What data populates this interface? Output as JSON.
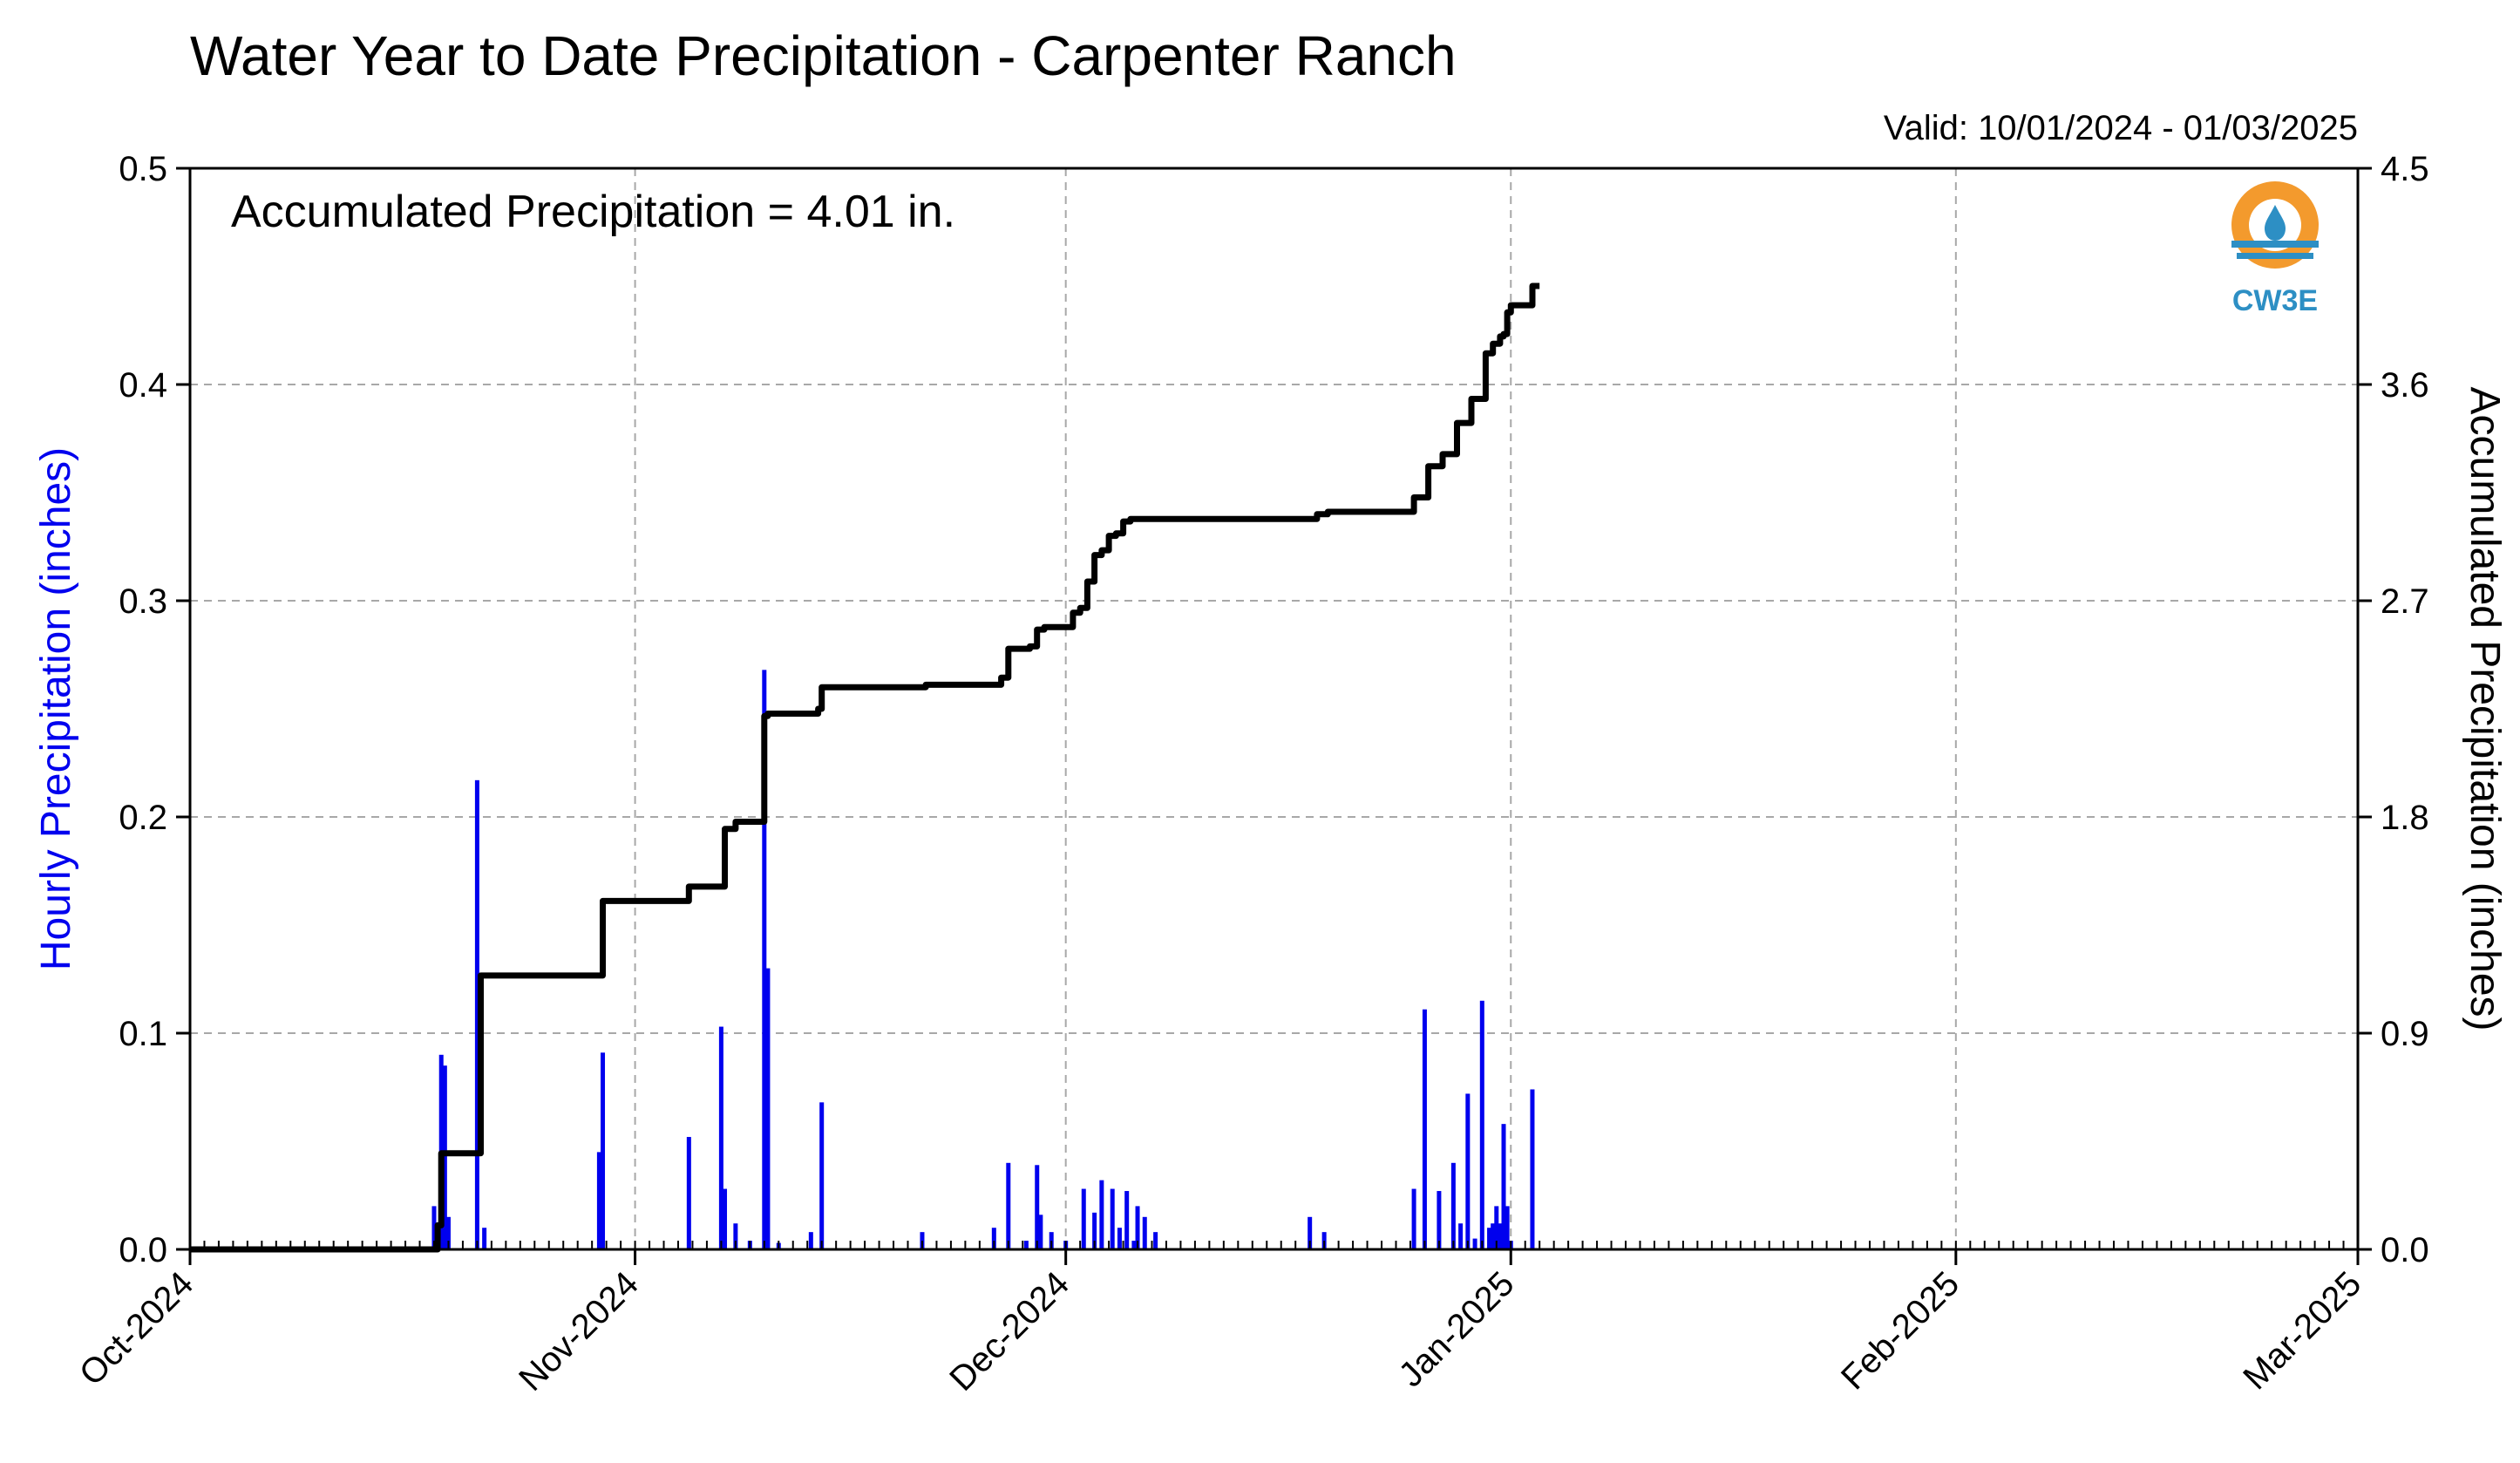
{
  "chart_data": {
    "type": "bar+line",
    "title": "Water Year to Date Precipitation - Carpenter Ranch",
    "valid_range": "Valid: 10/01/2024 - 01/03/2025",
    "annotation": "Accumulated Precipitation = 4.01 in.",
    "logo_text": "CW3E",
    "x_range": [
      "2024-10-01",
      "2025-03-01"
    ],
    "x_ticks": [
      {
        "date": "2024-10-01",
        "label": "Oct-2024"
      },
      {
        "date": "2024-11-01",
        "label": "Nov-2024"
      },
      {
        "date": "2024-12-01",
        "label": "Dec-2024"
      },
      {
        "date": "2025-01-01",
        "label": "Jan-2025"
      },
      {
        "date": "2025-02-01",
        "label": "Feb-2025"
      },
      {
        "date": "2025-03-01",
        "label": "Mar-2025"
      }
    ],
    "left_axis": {
      "label": "Hourly Precipitation (inches)",
      "range": [
        0,
        0.5
      ],
      "ticks": [
        "0.0",
        "0.1",
        "0.2",
        "0.3",
        "0.4",
        "0.5"
      ],
      "color": "#0000ee"
    },
    "right_axis": {
      "label": "Accumulated Precipitation (inches)",
      "range": [
        0,
        4.5
      ],
      "ticks": [
        "0.0",
        "0.9",
        "1.8",
        "2.7",
        "3.6",
        "4.5"
      ],
      "color": "#000000"
    },
    "grid": true,
    "series": [
      {
        "kind": "bar",
        "axis": "left",
        "color": "#0000ee",
        "points": [
          {
            "date": "2024-10-18",
            "value": 0.02
          },
          {
            "date": "2024-10-18 12:00",
            "value": 0.09
          },
          {
            "date": "2024-10-18 18:00",
            "value": 0.085
          },
          {
            "date": "2024-10-19",
            "value": 0.015
          },
          {
            "date": "2024-10-21",
            "value": 0.217
          },
          {
            "date": "2024-10-21 12:00",
            "value": 0.01
          },
          {
            "date": "2024-10-29 18:00",
            "value": 0.091
          },
          {
            "date": "2024-10-29 12:00",
            "value": 0.045
          },
          {
            "date": "2024-11-04 18:00",
            "value": 0.052
          },
          {
            "date": "2024-11-07",
            "value": 0.103
          },
          {
            "date": "2024-11-07 06:00",
            "value": 0.028
          },
          {
            "date": "2024-11-08",
            "value": 0.012
          },
          {
            "date": "2024-11-09",
            "value": 0.004
          },
          {
            "date": "2024-11-10",
            "value": 0.268
          },
          {
            "date": "2024-11-10 06:00",
            "value": 0.13
          },
          {
            "date": "2024-11-11",
            "value": 0.003
          },
          {
            "date": "2024-11-13 06:00",
            "value": 0.008
          },
          {
            "date": "2024-11-14",
            "value": 0.068
          },
          {
            "date": "2024-11-21",
            "value": 0.008
          },
          {
            "date": "2024-11-26",
            "value": 0.01
          },
          {
            "date": "2024-11-27",
            "value": 0.04
          },
          {
            "date": "2024-11-28 06:00",
            "value": 0.004
          },
          {
            "date": "2024-11-29",
            "value": 0.039
          },
          {
            "date": "2024-11-29 06:00",
            "value": 0.016
          },
          {
            "date": "2024-11-30",
            "value": 0.008
          },
          {
            "date": "2024-12-01",
            "value": 0.004
          },
          {
            "date": "2024-12-02 06:00",
            "value": 0.028
          },
          {
            "date": "2024-12-03",
            "value": 0.017
          },
          {
            "date": "2024-12-03 12:00",
            "value": 0.032
          },
          {
            "date": "2024-12-04 06:00",
            "value": 0.028
          },
          {
            "date": "2024-12-04 18:00",
            "value": 0.01
          },
          {
            "date": "2024-12-05 06:00",
            "value": 0.027
          },
          {
            "date": "2024-12-05 18:00",
            "value": 0.004
          },
          {
            "date": "2024-12-06",
            "value": 0.02
          },
          {
            "date": "2024-12-06 12:00",
            "value": 0.015
          },
          {
            "date": "2024-12-07 06:00",
            "value": 0.008
          },
          {
            "date": "2024-12-18",
            "value": 0.015
          },
          {
            "date": "2024-12-19",
            "value": 0.008
          },
          {
            "date": "2024-12-25 06:00",
            "value": 0.028
          },
          {
            "date": "2024-12-26",
            "value": 0.111
          },
          {
            "date": "2024-12-27",
            "value": 0.027
          },
          {
            "date": "2024-12-28",
            "value": 0.04
          },
          {
            "date": "2024-12-28 12:00",
            "value": 0.012
          },
          {
            "date": "2024-12-29",
            "value": 0.072
          },
          {
            "date": "2024-12-29 12:00",
            "value": 0.005
          },
          {
            "date": "2024-12-30",
            "value": 0.115
          },
          {
            "date": "2024-12-30 12:00",
            "value": 0.01
          },
          {
            "date": "2024-12-30 18:00",
            "value": 0.012
          },
          {
            "date": "2024-12-31",
            "value": 0.02
          },
          {
            "date": "2024-12-31 06:00",
            "value": 0.012
          },
          {
            "date": "2024-12-31 12:00",
            "value": 0.058
          },
          {
            "date": "2024-12-31 18:00",
            "value": 0.02
          },
          {
            "date": "2025-01-01",
            "value": 0.004
          },
          {
            "date": "2025-01-02 12:00",
            "value": 0.074
          }
        ]
      },
      {
        "kind": "step-line",
        "axis": "right",
        "color": "#000000",
        "points": [
          {
            "date": "2024-10-01",
            "value": 0.0
          },
          {
            "date": "2024-10-18",
            "value": 0.0
          },
          {
            "date": "2024-10-18 06:00",
            "value": 0.1
          },
          {
            "date": "2024-10-18 12:00",
            "value": 0.4
          },
          {
            "date": "2024-10-21",
            "value": 0.4
          },
          {
            "date": "2024-10-21 06:00",
            "value": 1.14
          },
          {
            "date": "2024-10-29 12:00",
            "value": 1.14
          },
          {
            "date": "2024-10-29 18:00",
            "value": 1.45
          },
          {
            "date": "2024-11-04 12:00",
            "value": 1.45
          },
          {
            "date": "2024-11-04 18:00",
            "value": 1.51
          },
          {
            "date": "2024-11-06 18:00",
            "value": 1.51
          },
          {
            "date": "2024-11-07 06:00",
            "value": 1.75
          },
          {
            "date": "2024-11-07 18:00",
            "value": 1.75
          },
          {
            "date": "2024-11-08",
            "value": 1.78
          },
          {
            "date": "2024-11-09 12:00",
            "value": 1.78
          },
          {
            "date": "2024-11-10",
            "value": 2.22
          },
          {
            "date": "2024-11-10 06:00",
            "value": 2.23
          },
          {
            "date": "2024-11-13 06:00",
            "value": 2.23
          },
          {
            "date": "2024-11-13 18:00",
            "value": 2.25
          },
          {
            "date": "2024-11-14",
            "value": 2.34
          },
          {
            "date": "2024-11-21",
            "value": 2.34
          },
          {
            "date": "2024-11-21 06:00",
            "value": 2.35
          },
          {
            "date": "2024-11-26",
            "value": 2.35
          },
          {
            "date": "2024-11-26 12:00",
            "value": 2.38
          },
          {
            "date": "2024-11-27",
            "value": 2.5
          },
          {
            "date": "2024-11-28 12:00",
            "value": 2.51
          },
          {
            "date": "2024-11-29",
            "value": 2.58
          },
          {
            "date": "2024-11-29 12:00",
            "value": 2.59
          },
          {
            "date": "2024-12-01",
            "value": 2.59
          },
          {
            "date": "2024-12-01 12:00",
            "value": 2.65
          },
          {
            "date": "2024-12-02",
            "value": 2.67
          },
          {
            "date": "2024-12-02 12:00",
            "value": 2.78
          },
          {
            "date": "2024-12-03",
            "value": 2.89
          },
          {
            "date": "2024-12-03 12:00",
            "value": 2.91
          },
          {
            "date": "2024-12-04",
            "value": 2.97
          },
          {
            "date": "2024-12-04 12:00",
            "value": 2.98
          },
          {
            "date": "2024-12-05",
            "value": 3.03
          },
          {
            "date": "2024-12-05 12:00",
            "value": 3.04
          },
          {
            "date": "2024-12-18",
            "value": 3.04
          },
          {
            "date": "2024-12-18 12:00",
            "value": 3.06
          },
          {
            "date": "2024-12-19 06:00",
            "value": 3.07
          },
          {
            "date": "2024-12-25",
            "value": 3.07
          },
          {
            "date": "2024-12-25 06:00",
            "value": 3.13
          },
          {
            "date": "2024-12-26",
            "value": 3.13
          },
          {
            "date": "2024-12-26 06:00",
            "value": 3.26
          },
          {
            "date": "2024-12-27",
            "value": 3.26
          },
          {
            "date": "2024-12-27 06:00",
            "value": 3.31
          },
          {
            "date": "2024-12-28",
            "value": 3.31
          },
          {
            "date": "2024-12-28 06:00",
            "value": 3.44
          },
          {
            "date": "2024-12-29",
            "value": 3.44
          },
          {
            "date": "2024-12-29 06:00",
            "value": 3.54
          },
          {
            "date": "2024-12-30",
            "value": 3.54
          },
          {
            "date": "2024-12-30 06:00",
            "value": 3.73
          },
          {
            "date": "2024-12-30 18:00",
            "value": 3.77
          },
          {
            "date": "2024-12-31 06:00",
            "value": 3.8
          },
          {
            "date": "2024-12-31 12:00",
            "value": 3.81
          },
          {
            "date": "2024-12-31 18:00",
            "value": 3.9
          },
          {
            "date": "2025-01-01",
            "value": 3.93
          },
          {
            "date": "2025-01-02 06:00",
            "value": 3.93
          },
          {
            "date": "2025-01-02 12:00",
            "value": 4.01
          },
          {
            "date": "2025-01-03",
            "value": 4.01
          }
        ]
      }
    ]
  }
}
